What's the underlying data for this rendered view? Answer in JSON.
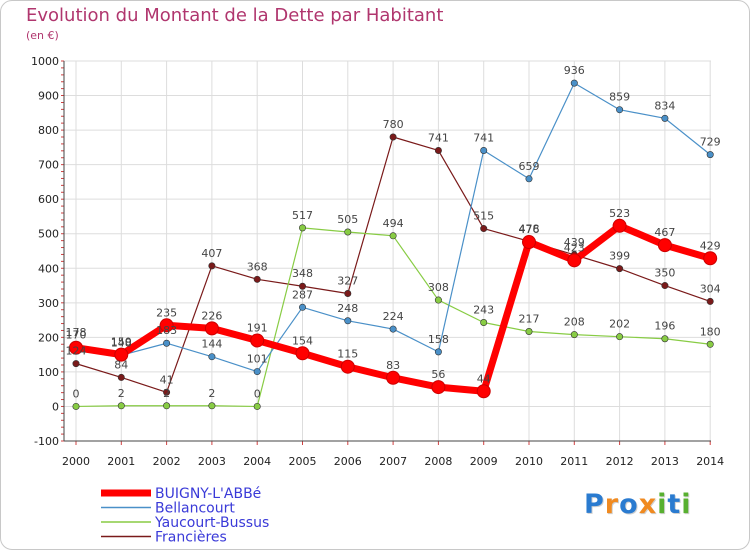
{
  "chart_data": {
    "type": "line",
    "title": "Evolution du Montant de la Dette par Habitant",
    "subtitle": "(en €)",
    "x": [
      "2000",
      "2001",
      "2002",
      "2003",
      "2004",
      "2005",
      "2006",
      "2007",
      "2008",
      "2009",
      "2010",
      "2011",
      "2012",
      "2013",
      "2014"
    ],
    "ylim": [
      -100,
      1000
    ],
    "yticks": [
      -100,
      0,
      100,
      200,
      300,
      400,
      500,
      600,
      700,
      800,
      900,
      1000
    ],
    "grid": true,
    "legend_position": "bottom-left",
    "series": [
      {
        "name": "BUIGNY-L'ABBé",
        "color": "#ff0000",
        "values": [
          170,
          150,
          235,
          226,
          191,
          154,
          115,
          83,
          56,
          44,
          476,
          423,
          523,
          467,
          429
        ]
      },
      {
        "name": "Bellancourt",
        "color": "#4a90c8",
        "values": [
          178,
          148,
          183,
          144,
          101,
          287,
          248,
          224,
          158,
          741,
          659,
          936,
          859,
          834,
          729
        ]
      },
      {
        "name": "Yaucourt-Bussus",
        "color": "#88cc44",
        "values": [
          0,
          2,
          2,
          2,
          0,
          517,
          505,
          494,
          308,
          243,
          217,
          208,
          202,
          196,
          180
        ]
      },
      {
        "name": "Francières",
        "color": "#7a1a1a",
        "values": [
          124,
          84,
          41,
          407,
          368,
          348,
          327,
          780,
          741,
          515,
          478,
          439,
          399,
          350,
          304
        ]
      }
    ]
  },
  "logo": {
    "letters": [
      "P",
      "r",
      "o",
      "x",
      "i",
      "t",
      "i"
    ],
    "colors": [
      "#2a7bd0",
      "#f08a20",
      "#2a7bd0",
      "#f08a20",
      "#58b030",
      "#2a7bd0",
      "#58b030"
    ]
  }
}
